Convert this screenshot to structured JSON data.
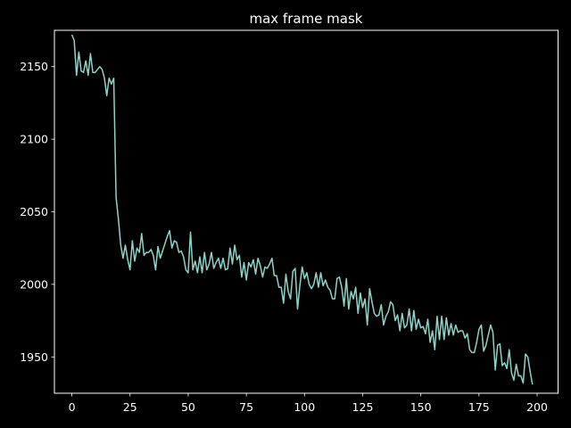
{
  "chart_data": {
    "type": "line",
    "title": "max frame mask",
    "xlabel": "",
    "ylabel": "",
    "xlim": [
      -7.5,
      209
    ],
    "ylim": [
      1925,
      2175
    ],
    "grid": false,
    "x_ticks": [
      0,
      25,
      50,
      75,
      100,
      125,
      150,
      175,
      200
    ],
    "y_ticks": [
      1950,
      2000,
      2050,
      2100,
      2150
    ],
    "x_tick_labels": [
      "0",
      "25",
      "50",
      "75",
      "100",
      "125",
      "150",
      "175",
      "200"
    ],
    "y_tick_labels": [
      "1950",
      "2000",
      "2050",
      "2100",
      "2150"
    ],
    "colors": {
      "background": "#000000",
      "axes": "#ffffff",
      "text": "#ffffff",
      "series": "#8dd3c7"
    },
    "series": [
      {
        "values": [
          2172,
          2168,
          2144,
          2160,
          2147,
          2146,
          2154,
          2144,
          2159,
          2146,
          2146,
          2148,
          2150,
          2148,
          2142,
          2130,
          2142,
          2138,
          2142,
          2060,
          2045,
          2027,
          2018,
          2027,
          2017,
          2010,
          2030,
          2016,
          2025,
          2022,
          2035,
          2020,
          2022,
          2022,
          2024,
          2020,
          2010,
          2026,
          2018,
          2023,
          2028,
          2033,
          2037,
          2025,
          2030,
          2029,
          2022,
          2023,
          2019,
          2010,
          2008,
          2036,
          2010,
          2016,
          2008,
          2019,
          2008,
          2022,
          2010,
          2014,
          2022,
          2011,
          2015,
          2018,
          2011,
          2018,
          2010,
          2011,
          2025,
          2014,
          2027,
          2017,
          2020,
          2005,
          2015,
          2003,
          2015,
          2012,
          2017,
          2007,
          2018,
          2013,
          2005,
          2012,
          2011,
          2014,
          2018,
          2006,
          2006,
          1998,
          1998,
          1987,
          2007,
          1995,
          1990,
          2009,
          2011,
          1983,
          1999,
          2012,
          2004,
          2008,
          2000,
          1997,
          2000,
          2008,
          1998,
          2008,
          1999,
          2003,
          1998,
          1996,
          1990,
          1990,
          2004,
          2005,
          1998,
          1985,
          2004,
          1983,
          1995,
          1990,
          1998,
          1980,
          1994,
          1984,
          1990,
          1972,
          1997,
          1988,
          1980,
          1978,
          1979,
          1986,
          1972,
          1978,
          1981,
          1988,
          1986,
          1975,
          1979,
          1968,
          1980,
          1970,
          1972,
          1983,
          1968,
          1982,
          1969,
          1976,
          1970,
          1971,
          1966,
          1976,
          1960,
          1968,
          1955,
          1978,
          1962,
          1978,
          1962,
          1977,
          1965,
          1973,
          1965,
          1972,
          1967,
          1968,
          1968,
          1963,
          1966,
          1955,
          1953,
          1953,
          1960,
          1969,
          1972,
          1954,
          1958,
          1965,
          1972,
          1967,
          1941,
          1958,
          1959,
          1944,
          1946,
          1942,
          1955,
          1939,
          1934,
          1945,
          1937,
          1937,
          1932,
          1952,
          1950,
          1940,
          1931
        ]
      }
    ]
  }
}
